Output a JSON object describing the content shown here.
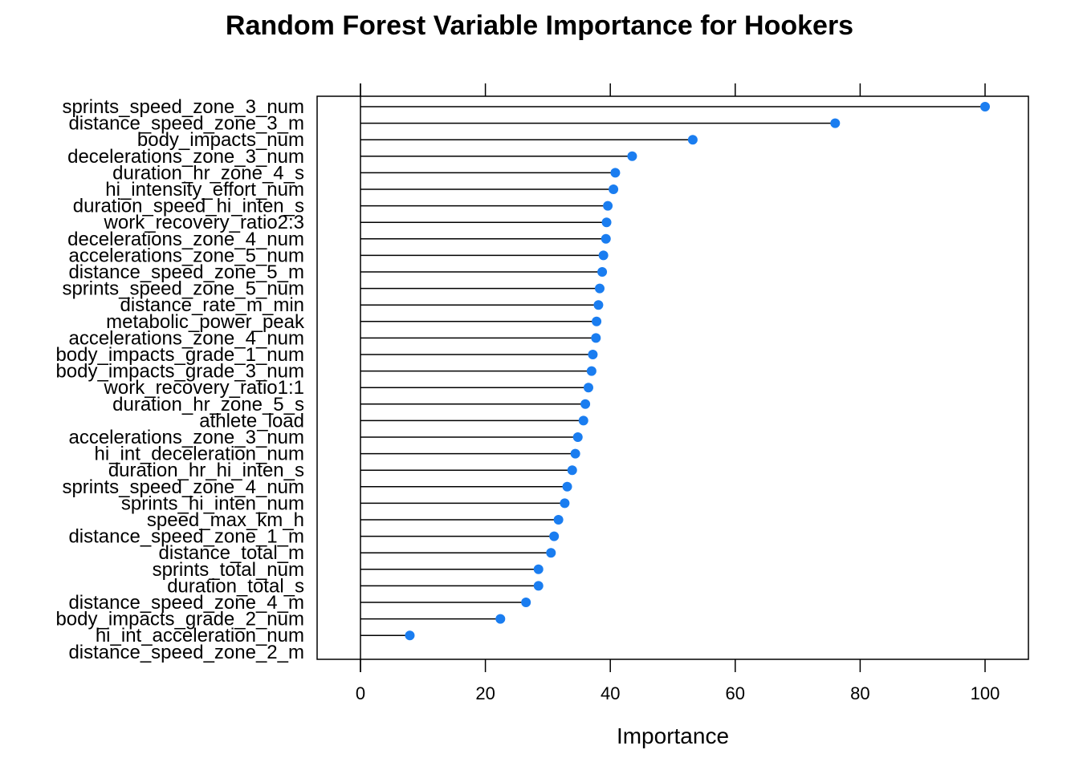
{
  "chart_data": {
    "type": "dot",
    "title": "Random Forest Variable Importance for Hookers",
    "xlabel": "Importance",
    "ylabel": "",
    "xlim": [
      -7,
      107
    ],
    "xticks": [
      0,
      20,
      40,
      60,
      80,
      100
    ],
    "grid": false,
    "point_color": "#1a7df0",
    "stem_color": "#000000",
    "categories": [
      "sprints_speed_zone_3_num",
      "distance_speed_zone_3_m",
      "body_impacts_num",
      "decelerations_zone_3_num",
      "duration_hr_zone_4_s",
      "hi_intensity_effort_num",
      "duration_speed_hi_inten_s",
      "work_recovery_ratio2:3",
      "decelerations_zone_4_num",
      "accelerations_zone_5_num",
      "distance_speed_zone_5_m",
      "sprints_speed_zone_5_num",
      "distance_rate_m_min",
      "metabolic_power_peak",
      "accelerations_zone_4_num",
      "body_impacts_grade_1_num",
      "body_impacts_grade_3_num",
      "work_recovery_ratio1:1",
      "duration_hr_zone_5_s",
      "athlete_load",
      "accelerations_zone_3_num",
      "hi_int_deceleration_num",
      "duration_hr_hi_inten_s",
      "sprints_speed_zone_4_num",
      "sprints_hi_inten_num",
      "speed_max_km_h",
      "distance_speed_zone_1_m",
      "distance_total_m",
      "sprints_total_num",
      "duration_total_s",
      "distance_speed_zone_4_m",
      "body_impacts_grade_2_num",
      "hi_int_acceleration_num",
      "distance_speed_zone_2_m"
    ],
    "values": [
      100,
      76,
      53.2,
      43.5,
      40.8,
      40.5,
      39.6,
      39.4,
      39.3,
      38.9,
      38.7,
      38.3,
      38.1,
      37.8,
      37.7,
      37.2,
      37.0,
      36.5,
      36.0,
      35.7,
      34.8,
      34.4,
      33.9,
      33.1,
      32.7,
      31.7,
      31.0,
      30.5,
      28.5,
      28.5,
      26.5,
      22.4,
      7.9,
      null
    ]
  }
}
